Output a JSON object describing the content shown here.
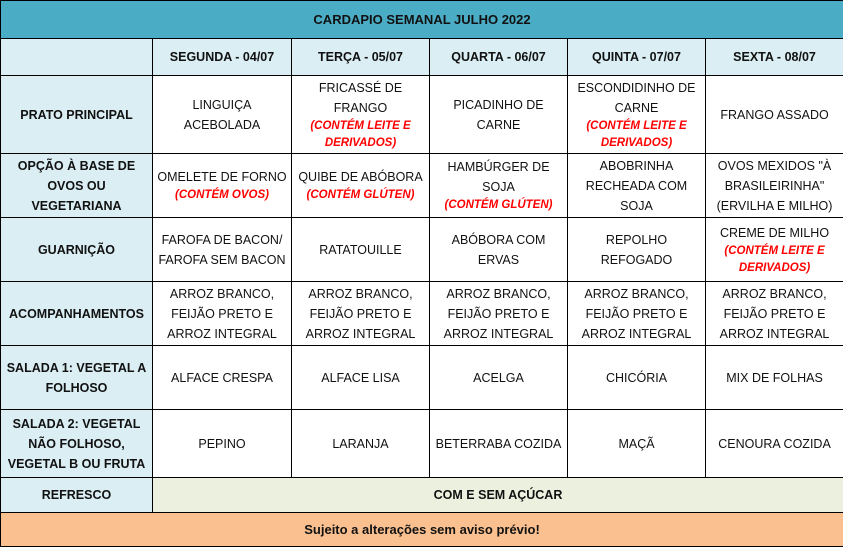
{
  "title": "CARDAPIO SEMANAL JULHO 2022",
  "days": [
    "SEGUNDA - 04/07",
    "TERÇA - 05/07",
    "QUARTA - 06/07",
    "QUINTA - 07/07",
    "SEXTA - 08/07"
  ],
  "rows": [
    {
      "label": "PRATO PRINCIPAL",
      "cells": [
        {
          "text": "LINGUIÇA ACEBOLADA",
          "note": ""
        },
        {
          "text": "FRICASSÉ DE FRANGO",
          "note": "(CONTÉM LEITE E DERIVADOS)"
        },
        {
          "text": "PICADINHO DE CARNE",
          "note": ""
        },
        {
          "text": "ESCONDIDINHO DE CARNE",
          "note": "(CONTÉM LEITE E DERIVADOS)"
        },
        {
          "text": "FRANGO ASSADO",
          "note": ""
        }
      ]
    },
    {
      "label": "OPÇÃO À BASE DE OVOS OU VEGETARIANA",
      "cells": [
        {
          "text": "OMELETE DE FORNO",
          "note": "(CONTÉM OVOS)"
        },
        {
          "text": "QUIBE DE ABÓBORA",
          "note": "(CONTÉM GLÚTEN)"
        },
        {
          "text": "HAMBÚRGER DE SOJA",
          "note": "(CONTÉM GLÚTEN)"
        },
        {
          "text": "ABOBRINHA RECHEADA COM SOJA",
          "note": ""
        },
        {
          "text": "OVOS MEXIDOS \"À BRASILEIRINHA\" (ERVILHA E MILHO)",
          "note": ""
        }
      ]
    },
    {
      "label": "GUARNIÇÃO",
      "cells": [
        {
          "text": "FAROFA DE BACON/ FAROFA SEM BACON",
          "note": ""
        },
        {
          "text": "RATATOUILLE",
          "note": ""
        },
        {
          "text": "ABÓBORA COM ERVAS",
          "note": ""
        },
        {
          "text": "REPOLHO REFOGADO",
          "note": ""
        },
        {
          "text": "CREME DE MILHO",
          "note": "(CONTÉM LEITE E DERIVADOS)"
        }
      ]
    },
    {
      "label": "ACOMPANHAMENTOS",
      "cells": [
        {
          "text": "ARROZ BRANCO, FEIJÃO PRETO E ARROZ INTEGRAL",
          "note": ""
        },
        {
          "text": "ARROZ BRANCO, FEIJÃO PRETO E ARROZ INTEGRAL",
          "note": ""
        },
        {
          "text": "ARROZ BRANCO, FEIJÃO PRETO E ARROZ INTEGRAL",
          "note": ""
        },
        {
          "text": "ARROZ BRANCO, FEIJÃO PRETO E ARROZ INTEGRAL",
          "note": ""
        },
        {
          "text": "ARROZ BRANCO, FEIJÃO PRETO E ARROZ INTEGRAL",
          "note": ""
        }
      ]
    },
    {
      "label": "SALADA 1: VEGETAL A FOLHOSO",
      "cells": [
        {
          "text": "ALFACE CRESPA",
          "note": ""
        },
        {
          "text": "ALFACE LISA",
          "note": ""
        },
        {
          "text": "ACELGA",
          "note": ""
        },
        {
          "text": "CHICÓRIA",
          "note": ""
        },
        {
          "text": "MIX DE FOLHAS",
          "note": ""
        }
      ]
    },
    {
      "label": "SALADA 2: VEGETAL NÃO FOLHOSO, VEGETAL B OU FRUTA",
      "cells": [
        {
          "text": "PEPINO",
          "note": ""
        },
        {
          "text": "LARANJA",
          "note": ""
        },
        {
          "text": "BETERRABA COZIDA",
          "note": ""
        },
        {
          "text": "MAÇÃ",
          "note": ""
        },
        {
          "text": "CENOURA COZIDA",
          "note": ""
        }
      ]
    }
  ],
  "refresco": {
    "label": "REFRESCO",
    "value": "COM E SEM AÇÚCAR"
  },
  "footer": "Sujeito a alterações sem aviso prévio!",
  "colors": {
    "title": "#4bacc6",
    "header": "#daeef3",
    "refresco": "#ebf1de",
    "footer": "#fac090",
    "note": "#ff0000"
  }
}
